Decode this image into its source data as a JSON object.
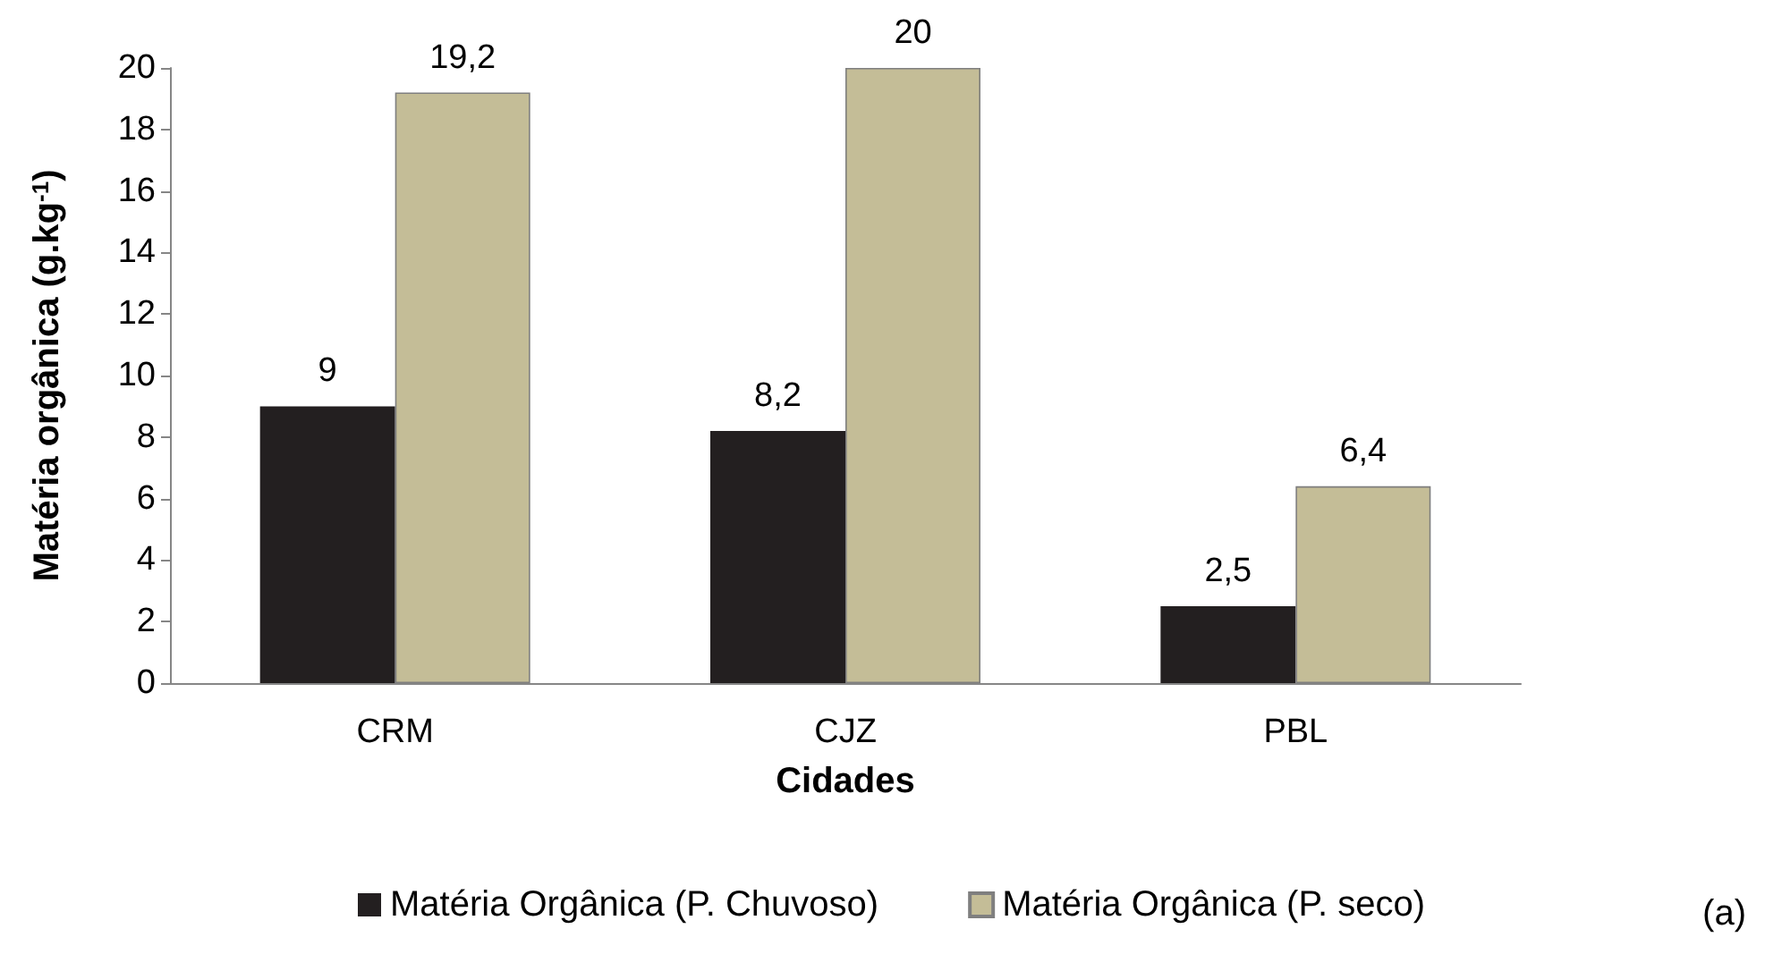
{
  "chart_data": {
    "type": "bar",
    "xlabel": "Cidades",
    "ylabel": "Matéria orgânica (g.kg$^{-1}$)",
    "categories": [
      "CRM",
      "CJZ",
      "PBL"
    ],
    "series": [
      {
        "name": "Matéria Orgânica (P. Chuvoso)",
        "color": "#231f20",
        "values": [
          9,
          8.2,
          2.5
        ],
        "value_labels": [
          "9",
          "8,2",
          "2,5"
        ]
      },
      {
        "name": "Matéria Orgânica (P. seco)",
        "color": "#c4bd97",
        "values": [
          19.2,
          20,
          6.4
        ],
        "value_labels": [
          "19,2",
          "20",
          "6,4"
        ]
      }
    ],
    "ylim": [
      0,
      20
    ],
    "yticks": [
      0,
      2,
      4,
      6,
      8,
      10,
      12,
      14,
      16,
      18,
      20
    ],
    "grid": false,
    "legend": "bottom",
    "annotations": [
      "(a)"
    ]
  }
}
